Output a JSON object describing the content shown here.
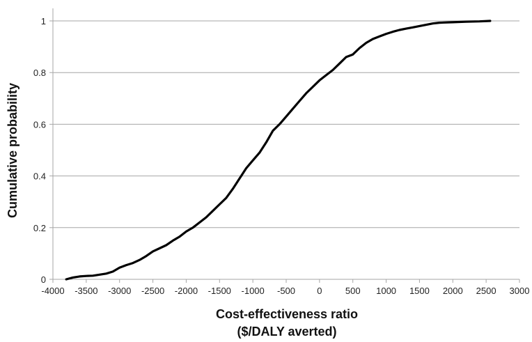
{
  "chart_data": {
    "type": "line",
    "title": "",
    "xlabel_line1": "Cost-effectiveness ratio",
    "xlabel_line2": "($/DALY averted)",
    "ylabel": "Cumulative probability",
    "xlim": [
      -4000,
      3000
    ],
    "ylim": [
      0,
      1
    ],
    "x_ticks": [
      -4000,
      -3500,
      -3000,
      -2500,
      -2000,
      -1500,
      -1000,
      -500,
      0,
      500,
      1000,
      1500,
      2000,
      2500,
      3000
    ],
    "x_tick_labels": [
      "-4000",
      "-3500",
      "-3000",
      "-2500",
      "-2000",
      "-1500",
      "-1000",
      "-500",
      "0",
      "500",
      "1000",
      "1500",
      "2000",
      "2500",
      "3000"
    ],
    "y_ticks": [
      0,
      0.2,
      0.4,
      0.6,
      0.8,
      1
    ],
    "y_tick_labels": [
      "0",
      "0.2",
      "0.4",
      "0.6",
      "0.8",
      "1"
    ],
    "grid": "horizontal",
    "legend": "none",
    "line_color": "#000000",
    "grid_color": "#a6a6a6",
    "series": [
      {
        "points": [
          [
            -3800,
            0.0
          ],
          [
            -3700,
            0.007
          ],
          [
            -3600,
            0.011
          ],
          [
            -3500,
            0.013
          ],
          [
            -3400,
            0.014
          ],
          [
            -3300,
            0.018
          ],
          [
            -3200,
            0.022
          ],
          [
            -3100,
            0.03
          ],
          [
            -3000,
            0.045
          ],
          [
            -2900,
            0.055
          ],
          [
            -2800,
            0.063
          ],
          [
            -2700,
            0.075
          ],
          [
            -2600,
            0.09
          ],
          [
            -2500,
            0.108
          ],
          [
            -2400,
            0.12
          ],
          [
            -2300,
            0.132
          ],
          [
            -2200,
            0.15
          ],
          [
            -2100,
            0.165
          ],
          [
            -2000,
            0.185
          ],
          [
            -1900,
            0.2
          ],
          [
            -1800,
            0.22
          ],
          [
            -1700,
            0.24
          ],
          [
            -1600,
            0.265
          ],
          [
            -1500,
            0.29
          ],
          [
            -1400,
            0.315
          ],
          [
            -1300,
            0.35
          ],
          [
            -1200,
            0.39
          ],
          [
            -1100,
            0.43
          ],
          [
            -1000,
            0.46
          ],
          [
            -900,
            0.49
          ],
          [
            -800,
            0.53
          ],
          [
            -700,
            0.575
          ],
          [
            -600,
            0.6
          ],
          [
            -500,
            0.63
          ],
          [
            -400,
            0.66
          ],
          [
            -300,
            0.69
          ],
          [
            -200,
            0.72
          ],
          [
            -100,
            0.745
          ],
          [
            0,
            0.77
          ],
          [
            100,
            0.79
          ],
          [
            200,
            0.81
          ],
          [
            300,
            0.835
          ],
          [
            400,
            0.86
          ],
          [
            500,
            0.87
          ],
          [
            600,
            0.895
          ],
          [
            700,
            0.915
          ],
          [
            800,
            0.93
          ],
          [
            900,
            0.94
          ],
          [
            1000,
            0.95
          ],
          [
            1100,
            0.958
          ],
          [
            1200,
            0.965
          ],
          [
            1300,
            0.97
          ],
          [
            1400,
            0.975
          ],
          [
            1500,
            0.98
          ],
          [
            1600,
            0.985
          ],
          [
            1700,
            0.99
          ],
          [
            1800,
            0.993
          ],
          [
            2000,
            0.995
          ],
          [
            2200,
            0.997
          ],
          [
            2400,
            0.998
          ],
          [
            2560,
            1.0
          ]
        ]
      }
    ]
  }
}
